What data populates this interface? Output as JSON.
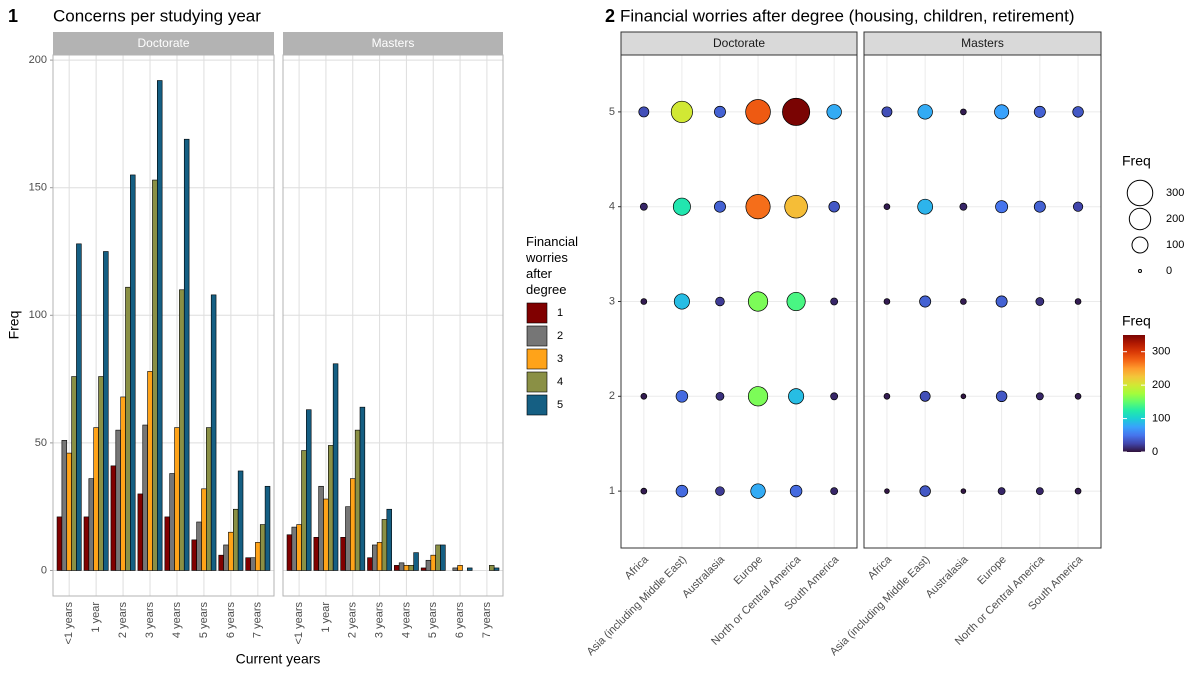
{
  "chart_data": [
    {
      "type": "bar",
      "tag": "1",
      "title": "Concerns per studying year",
      "x_label": "Current years",
      "y_label": "Freq",
      "facets": [
        "Doctorate",
        "Masters"
      ],
      "categories": [
        "<1 years",
        "1 year",
        "2 years",
        "3 years",
        "4 years",
        "5 years",
        "6 years",
        "7 years"
      ],
      "ylim": [
        -10,
        202
      ],
      "yticks": [
        0,
        50,
        100,
        150,
        200
      ],
      "grid": true,
      "legend_title": "Financial worries after degree",
      "series": [
        {
          "name": "1",
          "color": "#800000",
          "values": [
            [
              21,
              21,
              41,
              30,
              21,
              12,
              6,
              5
            ],
            [
              14,
              13,
              13,
              5,
              2,
              1,
              0,
              0
            ]
          ]
        },
        {
          "name": "2",
          "color": "#767676",
          "values": [
            [
              51,
              36,
              55,
              57,
              38,
              19,
              10,
              5
            ],
            [
              17,
              33,
              25,
              10,
              3,
              4,
              1,
              0
            ]
          ]
        },
        {
          "name": "3",
          "color": "#ffa319",
          "values": [
            [
              46,
              56,
              68,
              78,
              56,
              32,
              15,
              11
            ],
            [
              18,
              28,
              36,
              11,
              2,
              6,
              2,
              0
            ]
          ]
        },
        {
          "name": "4",
          "color": "#8a9045",
          "values": [
            [
              76,
              76,
              111,
              153,
              110,
              56,
              24,
              18
            ],
            [
              47,
              49,
              55,
              20,
              2,
              10,
              0,
              2
            ]
          ]
        },
        {
          "name": "5",
          "color": "#155f83",
          "values": [
            [
              128,
              125,
              155,
              192,
              169,
              108,
              39,
              33
            ],
            [
              63,
              81,
              64,
              24,
              7,
              10,
              1,
              1
            ]
          ]
        }
      ]
    },
    {
      "type": "bubble",
      "tag": "2",
      "title": "Financial worries after degree (housing, children, retirement)",
      "facets": [
        "Doctorate",
        "Masters"
      ],
      "categories": [
        "Africa",
        "Asia (including Middle East)",
        "Australasia",
        "Europe",
        "North or Central America",
        "South America"
      ],
      "ylim": [
        0.4,
        5.6
      ],
      "yticks": [
        1,
        2,
        3,
        4,
        5
      ],
      "grid": true,
      "values": [
        [
          [
            5,
            45,
            20,
            80,
            45,
            10
          ],
          [
            5,
            45,
            15,
            160,
            90,
            10
          ],
          [
            5,
            90,
            20,
            160,
            140,
            10
          ],
          [
            10,
            120,
            40,
            270,
            230,
            35
          ],
          [
            30,
            200,
            40,
            280,
            350,
            80
          ]
        ],
        [
          [
            2,
            35,
            2,
            10,
            10,
            5
          ],
          [
            5,
            30,
            2,
            35,
            10,
            5
          ],
          [
            5,
            40,
            5,
            40,
            15,
            5
          ],
          [
            5,
            85,
            10,
            50,
            40,
            25
          ],
          [
            30,
            80,
            5,
            75,
            40,
            35
          ]
        ]
      ],
      "size_legend": {
        "title": "Freq",
        "values": [
          300,
          200,
          100,
          0
        ]
      },
      "color_legend": {
        "title": "Freq",
        "lim": [
          0,
          350
        ],
        "ticks": [
          0,
          100,
          200,
          300
        ],
        "colormap": [
          "#30123b",
          "#4145ab",
          "#4675ed",
          "#39a2fc",
          "#1bcfd4",
          "#24eca6",
          "#61fc6c",
          "#a4fc3b",
          "#d1e834",
          "#f3c63a",
          "#fe9b2d",
          "#f36315",
          "#d93806",
          "#b11901",
          "#7a0403"
        ]
      }
    }
  ]
}
